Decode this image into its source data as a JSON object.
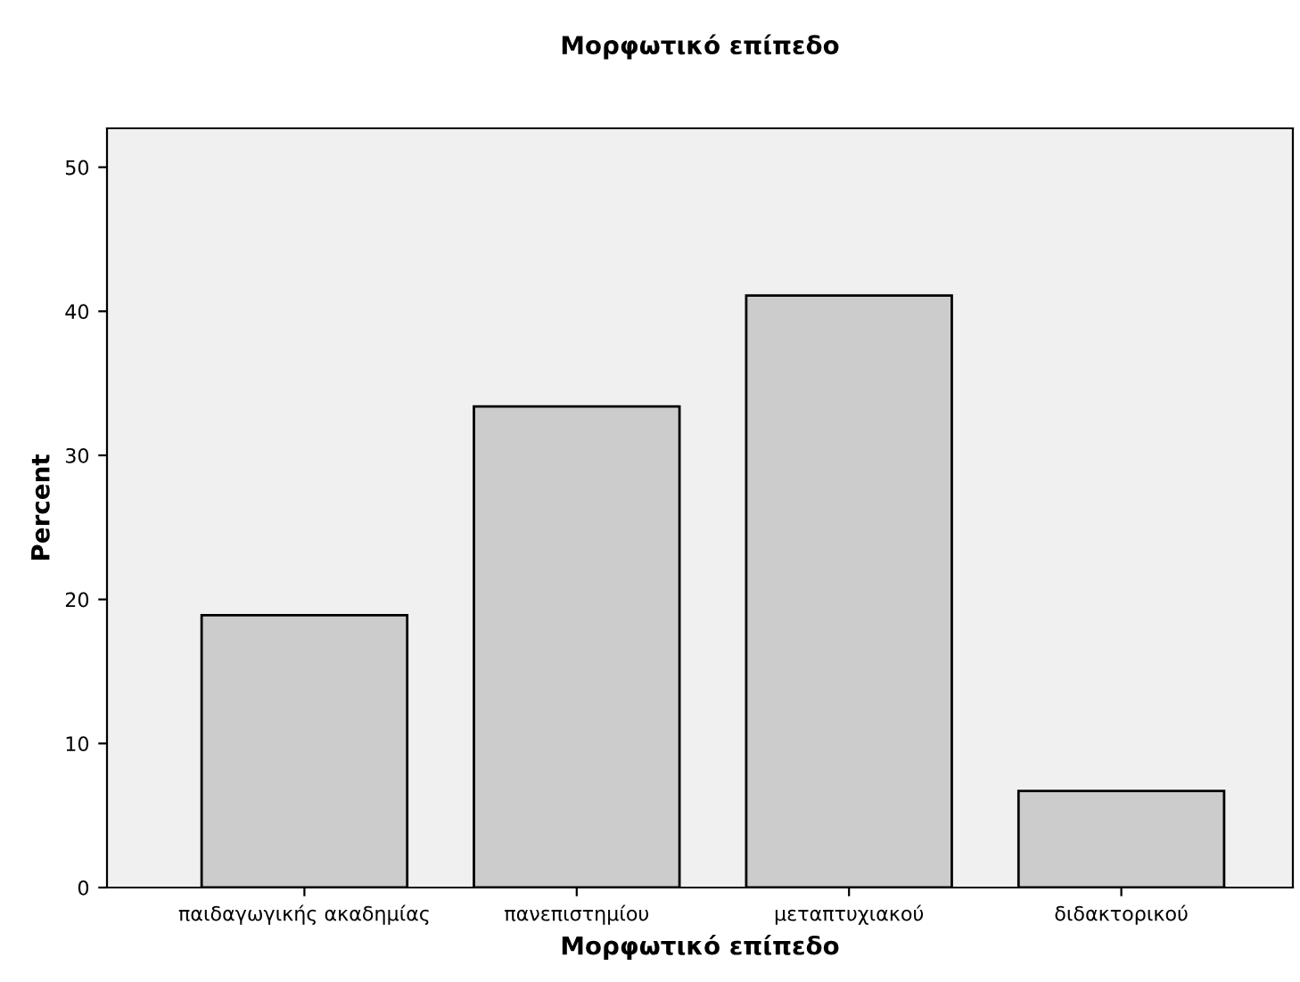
{
  "chart_data": {
    "type": "bar",
    "title": "Μορφωτικό επίπεδο",
    "xlabel": "Μορφωτικό επίπεδο",
    "ylabel": "Percent",
    "categories": [
      "παιδαγωγικής ακαδημίας",
      "πανεπιστημίου",
      "μεταπτυχιακού",
      "διδακτορικού"
    ],
    "values": [
      18.9,
      33.4,
      41.1,
      6.7
    ],
    "color": "#cccccc",
    "ylim": [
      0,
      52.7
    ],
    "yticks": [
      0,
      10,
      20,
      30,
      40,
      50
    ],
    "grid": false,
    "legend": false
  }
}
